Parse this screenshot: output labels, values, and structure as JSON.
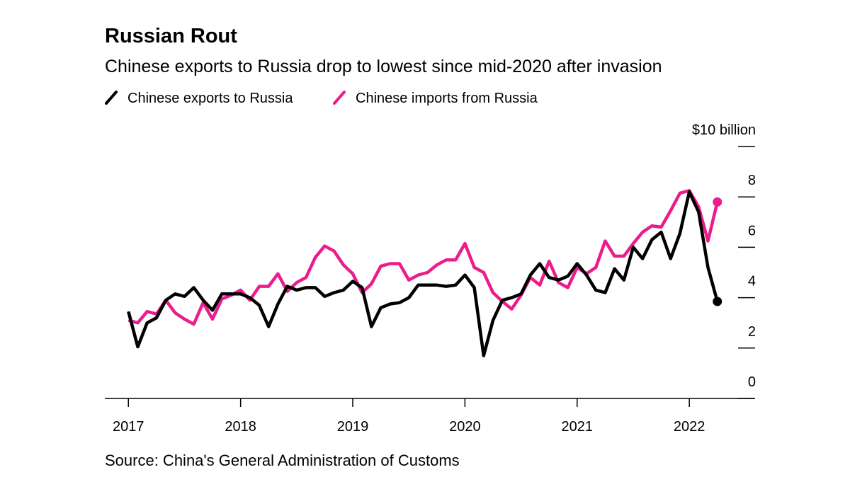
{
  "chart_data": {
    "type": "line",
    "title": "Russian Rout",
    "subtitle": "Chinese exports to Russia drop to lowest since mid-2020 after invasion",
    "source": "Source: China's General Administration of Customs",
    "x": [
      "2017-01",
      "2017-02",
      "2017-03",
      "2017-04",
      "2017-05",
      "2017-06",
      "2017-07",
      "2017-08",
      "2017-09",
      "2017-10",
      "2017-11",
      "2017-12",
      "2018-01",
      "2018-02",
      "2018-03",
      "2018-04",
      "2018-05",
      "2018-06",
      "2018-07",
      "2018-08",
      "2018-09",
      "2018-10",
      "2018-11",
      "2018-12",
      "2019-01",
      "2019-02",
      "2019-03",
      "2019-04",
      "2019-05",
      "2019-06",
      "2019-07",
      "2019-08",
      "2019-09",
      "2019-10",
      "2019-11",
      "2019-12",
      "2020-01",
      "2020-02",
      "2020-03",
      "2020-04",
      "2020-05",
      "2020-06",
      "2020-07",
      "2020-08",
      "2020-09",
      "2020-10",
      "2020-11",
      "2020-12",
      "2021-01",
      "2021-02",
      "2021-03",
      "2021-04",
      "2021-05",
      "2021-06",
      "2021-07",
      "2021-08",
      "2021-09",
      "2021-10",
      "2021-11",
      "2021-12",
      "2022-01",
      "2022-02",
      "2022-03",
      "2022-04"
    ],
    "series": [
      {
        "name": "Chinese exports to Russia",
        "color": "#000000",
        "values": [
          3.45,
          2.05,
          3.0,
          3.2,
          3.9,
          4.15,
          4.05,
          4.4,
          3.9,
          3.5,
          4.15,
          4.15,
          4.15,
          4.0,
          3.7,
          2.85,
          3.75,
          4.45,
          4.3,
          4.4,
          4.4,
          4.05,
          4.2,
          4.3,
          4.65,
          4.4,
          2.85,
          3.6,
          3.75,
          3.8,
          4.0,
          4.5,
          4.5,
          4.5,
          4.45,
          4.5,
          4.9,
          4.4,
          1.7,
          3.1,
          3.9,
          4.0,
          4.15,
          4.9,
          5.35,
          4.8,
          4.7,
          4.85,
          5.35,
          4.9,
          4.3,
          4.2,
          5.15,
          4.7,
          6.0,
          5.55,
          6.3,
          6.6,
          5.55,
          6.55,
          8.2,
          7.4,
          5.2,
          3.85
        ]
      },
      {
        "name": "Chinese imports from Russia",
        "color": "#ec1c8c",
        "values": [
          3.1,
          3.0,
          3.45,
          3.35,
          3.9,
          3.4,
          3.15,
          2.95,
          3.8,
          3.15,
          3.95,
          4.1,
          4.3,
          3.9,
          4.45,
          4.45,
          4.95,
          4.25,
          4.6,
          4.8,
          5.6,
          6.05,
          5.85,
          5.3,
          4.95,
          4.2,
          4.55,
          5.25,
          5.35,
          5.35,
          4.7,
          4.9,
          5.0,
          5.3,
          5.5,
          5.5,
          6.15,
          5.2,
          5.0,
          4.2,
          3.85,
          3.55,
          4.1,
          4.8,
          4.5,
          5.45,
          4.6,
          4.4,
          5.2,
          4.95,
          5.2,
          6.25,
          5.65,
          5.65,
          6.15,
          6.6,
          6.85,
          6.8,
          7.45,
          8.15,
          8.25,
          7.6,
          6.25,
          7.8
        ]
      }
    ],
    "xlim": [
      2016.79,
      2022.58
    ],
    "xticks": [
      2017,
      2018,
      2019,
      2020,
      2021,
      2022
    ],
    "ylim": [
      0,
      10
    ],
    "yticks": [
      0,
      2,
      4,
      6,
      8,
      {
        "value": 10,
        "label": "$10 billion"
      }
    ],
    "end_markers": true
  }
}
